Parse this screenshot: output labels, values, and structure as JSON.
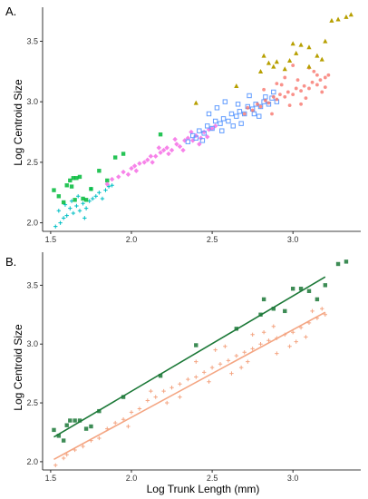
{
  "figure": {
    "panels": [
      {
        "label": "A.",
        "ylabel": "Log Centroid Size",
        "xlabel": ""
      },
      {
        "label": "B.",
        "ylabel": "Log Centroid Size",
        "xlabel": "Log Trunk Length (mm)"
      }
    ]
  },
  "chart_data": [
    {
      "type": "scatter",
      "title": "",
      "xlabel": "",
      "ylabel": "Log Centroid Size",
      "xlim": [
        1.45,
        3.42
      ],
      "ylim": [
        1.93,
        3.78
      ],
      "xticks": [
        1.5,
        2.0,
        2.5,
        3.0
      ],
      "xtick_labels": [
        "1.5",
        "2.0",
        "2.5",
        "3.0"
      ],
      "yticks": [
        2.0,
        2.5,
        3.0,
        3.5
      ],
      "ytick_labels": [
        "2.0",
        "2.5",
        "3.0",
        "3.5"
      ],
      "grid": false,
      "legend": "none",
      "series": [
        {
          "color": "#00BFC4",
          "marker": "plus",
          "points": [
            [
              1.53,
              1.97
            ],
            [
              1.56,
              2.0
            ],
            [
              1.58,
              2.04
            ],
            [
              1.55,
              2.1
            ],
            [
              1.6,
              2.06
            ],
            [
              1.62,
              2.12
            ],
            [
              1.64,
              2.08
            ],
            [
              1.66,
              2.14
            ],
            [
              1.68,
              2.1
            ],
            [
              1.7,
              2.16
            ],
            [
              1.72,
              2.12
            ],
            [
              1.74,
              2.18
            ],
            [
              1.76,
              2.2
            ],
            [
              1.78,
              2.22
            ],
            [
              1.8,
              2.25
            ],
            [
              1.82,
              2.2
            ],
            [
              1.84,
              2.27
            ],
            [
              1.86,
              2.3
            ],
            [
              1.88,
              2.31
            ],
            [
              1.63,
              2.18
            ],
            [
              1.67,
              2.22
            ],
            [
              1.71,
              2.04
            ],
            [
              1.59,
              2.15
            ],
            [
              1.75,
              2.28
            ]
          ]
        },
        {
          "color": "#00BA38",
          "marker": "square",
          "points": [
            [
              1.52,
              2.27
            ],
            [
              1.55,
              2.22
            ],
            [
              1.58,
              2.17
            ],
            [
              1.6,
              2.31
            ],
            [
              1.62,
              2.35
            ],
            [
              1.64,
              2.37
            ],
            [
              1.66,
              2.37
            ],
            [
              1.68,
              2.38
            ],
            [
              1.7,
              2.2
            ],
            [
              1.72,
              2.19
            ],
            [
              1.75,
              2.28
            ],
            [
              1.8,
              2.43
            ],
            [
              1.85,
              2.35
            ],
            [
              1.9,
              2.54
            ],
            [
              1.95,
              2.57
            ],
            [
              2.18,
              2.73
            ],
            [
              1.65,
              2.19
            ],
            [
              1.63,
              2.3
            ]
          ]
        },
        {
          "color": "#F564E3",
          "marker": "diamond",
          "points": [
            [
              1.85,
              2.32
            ],
            [
              1.88,
              2.36
            ],
            [
              1.92,
              2.38
            ],
            [
              1.95,
              2.42
            ],
            [
              1.98,
              2.4
            ],
            [
              2.0,
              2.45
            ],
            [
              2.02,
              2.47
            ],
            [
              2.05,
              2.49
            ],
            [
              2.08,
              2.5
            ],
            [
              2.1,
              2.52
            ],
            [
              2.12,
              2.55
            ],
            [
              2.15,
              2.55
            ],
            [
              2.18,
              2.58
            ],
            [
              2.2,
              2.6
            ],
            [
              2.22,
              2.62
            ],
            [
              2.25,
              2.6
            ],
            [
              2.28,
              2.65
            ],
            [
              2.3,
              2.63
            ],
            [
              2.33,
              2.68
            ],
            [
              2.35,
              2.7
            ],
            [
              2.38,
              2.68
            ],
            [
              2.4,
              2.72
            ],
            [
              2.43,
              2.7
            ],
            [
              2.45,
              2.75
            ],
            [
              2.48,
              2.77
            ],
            [
              2.5,
              2.78
            ],
            [
              2.52,
              2.8
            ],
            [
              2.03,
              2.43
            ],
            [
              2.13,
              2.5
            ],
            [
              2.23,
              2.57
            ],
            [
              2.32,
              2.6
            ],
            [
              2.42,
              2.65
            ],
            [
              2.17,
              2.62
            ],
            [
              2.27,
              2.69
            ],
            [
              2.37,
              2.75
            ],
            [
              2.47,
              2.71
            ]
          ]
        },
        {
          "color": "#619CFF",
          "marker": "square-open",
          "points": [
            [
              2.35,
              2.67
            ],
            [
              2.38,
              2.72
            ],
            [
              2.4,
              2.7
            ],
            [
              2.42,
              2.76
            ],
            [
              2.45,
              2.74
            ],
            [
              2.47,
              2.8
            ],
            [
              2.5,
              2.78
            ],
            [
              2.52,
              2.84
            ],
            [
              2.55,
              2.82
            ],
            [
              2.57,
              2.86
            ],
            [
              2.6,
              2.84
            ],
            [
              2.62,
              2.9
            ],
            [
              2.65,
              2.88
            ],
            [
              2.67,
              2.92
            ],
            [
              2.7,
              2.9
            ],
            [
              2.72,
              2.96
            ],
            [
              2.75,
              2.94
            ],
            [
              2.77,
              2.98
            ],
            [
              2.8,
              2.96
            ],
            [
              2.82,
              3.0
            ],
            [
              2.85,
              2.98
            ],
            [
              2.87,
              3.03
            ],
            [
              2.9,
              3.0
            ],
            [
              2.53,
              2.95
            ],
            [
              2.58,
              3.0
            ],
            [
              2.63,
              2.8
            ],
            [
              2.68,
              2.82
            ],
            [
              2.73,
              3.05
            ],
            [
              2.48,
              2.9
            ],
            [
              2.44,
              2.68
            ],
            [
              2.56,
              2.76
            ],
            [
              2.66,
              2.98
            ],
            [
              2.76,
              2.9
            ],
            [
              2.83,
              3.04
            ],
            [
              2.79,
              2.88
            ],
            [
              2.88,
              3.08
            ]
          ]
        },
        {
          "color": "#F8766D",
          "marker": "circle",
          "points": [
            [
              2.7,
              2.9
            ],
            [
              2.72,
              2.95
            ],
            [
              2.75,
              2.93
            ],
            [
              2.78,
              2.98
            ],
            [
              2.8,
              2.96
            ],
            [
              2.83,
              3.01
            ],
            [
              2.85,
              2.99
            ],
            [
              2.88,
              3.04
            ],
            [
              2.9,
              3.02
            ],
            [
              2.92,
              3.06
            ],
            [
              2.95,
              3.04
            ],
            [
              2.97,
              3.08
            ],
            [
              3.0,
              3.06
            ],
            [
              3.02,
              3.11
            ],
            [
              3.05,
              3.09
            ],
            [
              3.07,
              3.13
            ],
            [
              3.1,
              3.11
            ],
            [
              3.12,
              3.16
            ],
            [
              3.15,
              3.14
            ],
            [
              3.17,
              3.18
            ],
            [
              3.2,
              3.2
            ],
            [
              3.22,
              3.22
            ],
            [
              2.82,
              3.1
            ],
            [
              2.87,
              2.9
            ],
            [
              2.93,
              3.14
            ],
            [
              2.98,
              2.97
            ],
            [
              3.03,
              3.18
            ],
            [
              3.08,
              3.03
            ],
            [
              3.13,
              3.25
            ],
            [
              3.18,
              3.08
            ],
            [
              3.0,
              3.3
            ],
            [
              3.1,
              3.28
            ],
            [
              2.95,
              3.2
            ],
            [
              3.05,
              2.98
            ],
            [
              2.9,
              3.15
            ],
            [
              3.15,
              3.22
            ],
            [
              3.2,
              3.12
            ]
          ]
        },
        {
          "color": "#B79F00",
          "marker": "triangle",
          "points": [
            [
              2.4,
              2.99
            ],
            [
              2.65,
              3.13
            ],
            [
              2.8,
              3.25
            ],
            [
              2.82,
              3.38
            ],
            [
              2.85,
              3.32
            ],
            [
              2.88,
              3.29
            ],
            [
              2.9,
              3.33
            ],
            [
              2.95,
              3.27
            ],
            [
              2.98,
              3.34
            ],
            [
              3.0,
              3.48
            ],
            [
              3.05,
              3.47
            ],
            [
              3.1,
              3.45
            ],
            [
              3.15,
              3.38
            ],
            [
              3.18,
              3.35
            ],
            [
              3.1,
              3.29
            ],
            [
              3.02,
              3.4
            ],
            [
              3.2,
              3.5
            ],
            [
              3.24,
              3.67
            ],
            [
              3.28,
              3.68
            ],
            [
              3.33,
              3.7
            ],
            [
              3.36,
              3.72
            ]
          ]
        }
      ]
    },
    {
      "type": "scatter",
      "title": "",
      "xlabel": "Log Trunk Length (mm)",
      "ylabel": "Log Centroid Size",
      "xlim": [
        1.45,
        3.42
      ],
      "ylim": [
        1.93,
        3.78
      ],
      "xticks": [
        1.5,
        2.0,
        2.5,
        3.0
      ],
      "xtick_labels": [
        "1.5",
        "2.0",
        "2.5",
        "3.0"
      ],
      "yticks": [
        2.0,
        2.5,
        3.0,
        3.5
      ],
      "ytick_labels": [
        "2.0",
        "2.5",
        "3.0",
        "3.5"
      ],
      "grid": false,
      "legend": "none",
      "series": [
        {
          "color": "#F4A582",
          "marker": "plus",
          "points": [
            [
              1.53,
              1.97
            ],
            [
              1.58,
              2.03
            ],
            [
              1.6,
              2.06
            ],
            [
              1.65,
              2.1
            ],
            [
              1.7,
              2.13
            ],
            [
              1.75,
              2.18
            ],
            [
              1.8,
              2.2
            ],
            [
              1.85,
              2.28
            ],
            [
              1.9,
              2.33
            ],
            [
              1.95,
              2.36
            ],
            [
              2.0,
              2.42
            ],
            [
              2.05,
              2.45
            ],
            [
              2.1,
              2.52
            ],
            [
              2.15,
              2.55
            ],
            [
              2.2,
              2.6
            ],
            [
              2.25,
              2.63
            ],
            [
              2.3,
              2.66
            ],
            [
              2.35,
              2.7
            ],
            [
              2.4,
              2.72
            ],
            [
              2.45,
              2.76
            ],
            [
              2.5,
              2.8
            ],
            [
              2.55,
              2.83
            ],
            [
              2.6,
              2.86
            ],
            [
              2.65,
              2.9
            ],
            [
              2.7,
              2.93
            ],
            [
              2.75,
              2.96
            ],
            [
              2.8,
              3.0
            ],
            [
              2.85,
              3.03
            ],
            [
              2.9,
              3.05
            ],
            [
              2.95,
              3.08
            ],
            [
              3.0,
              3.1
            ],
            [
              3.05,
              3.14
            ],
            [
              3.1,
              3.18
            ],
            [
              3.15,
              3.22
            ],
            [
              3.2,
              3.25
            ],
            [
              2.52,
              2.95
            ],
            [
              2.68,
              2.8
            ],
            [
              2.82,
              3.1
            ],
            [
              2.98,
              2.98
            ],
            [
              3.12,
              3.28
            ],
            [
              2.3,
              2.55
            ],
            [
              2.4,
              2.85
            ],
            [
              2.62,
              2.75
            ],
            [
              2.75,
              3.08
            ],
            [
              2.9,
              2.92
            ],
            [
              3.08,
              3.06
            ],
            [
              1.98,
              2.3
            ],
            [
              2.12,
              2.6
            ],
            [
              2.22,
              2.5
            ],
            [
              2.48,
              2.68
            ],
            [
              2.58,
              2.98
            ],
            [
              2.72,
              2.85
            ],
            [
              2.88,
              3.15
            ],
            [
              3.02,
              3.02
            ],
            [
              3.18,
              3.3
            ]
          ]
        },
        {
          "color": "#1B7837",
          "marker": "square",
          "points": [
            [
              1.52,
              2.27
            ],
            [
              1.55,
              2.22
            ],
            [
              1.58,
              2.18
            ],
            [
              1.6,
              2.31
            ],
            [
              1.62,
              2.35
            ],
            [
              1.65,
              2.35
            ],
            [
              1.68,
              2.35
            ],
            [
              1.72,
              2.28
            ],
            [
              1.75,
              2.3
            ],
            [
              1.8,
              2.43
            ],
            [
              1.95,
              2.55
            ],
            [
              2.18,
              2.73
            ],
            [
              2.4,
              2.99
            ],
            [
              2.65,
              3.13
            ],
            [
              2.8,
              3.25
            ],
            [
              2.82,
              3.38
            ],
            [
              2.88,
              3.3
            ],
            [
              2.95,
              3.28
            ],
            [
              3.0,
              3.47
            ],
            [
              3.05,
              3.47
            ],
            [
              3.1,
              3.45
            ],
            [
              3.15,
              3.38
            ],
            [
              3.2,
              3.5
            ],
            [
              3.28,
              3.68
            ],
            [
              3.33,
              3.7
            ]
          ]
        }
      ],
      "lines": [
        {
          "color": "#1B7837",
          "x": [
            1.52,
            3.2
          ],
          "y": [
            2.21,
            3.57
          ]
        },
        {
          "color": "#F4A582",
          "x": [
            1.52,
            3.2
          ],
          "y": [
            2.02,
            3.27
          ]
        }
      ]
    }
  ]
}
